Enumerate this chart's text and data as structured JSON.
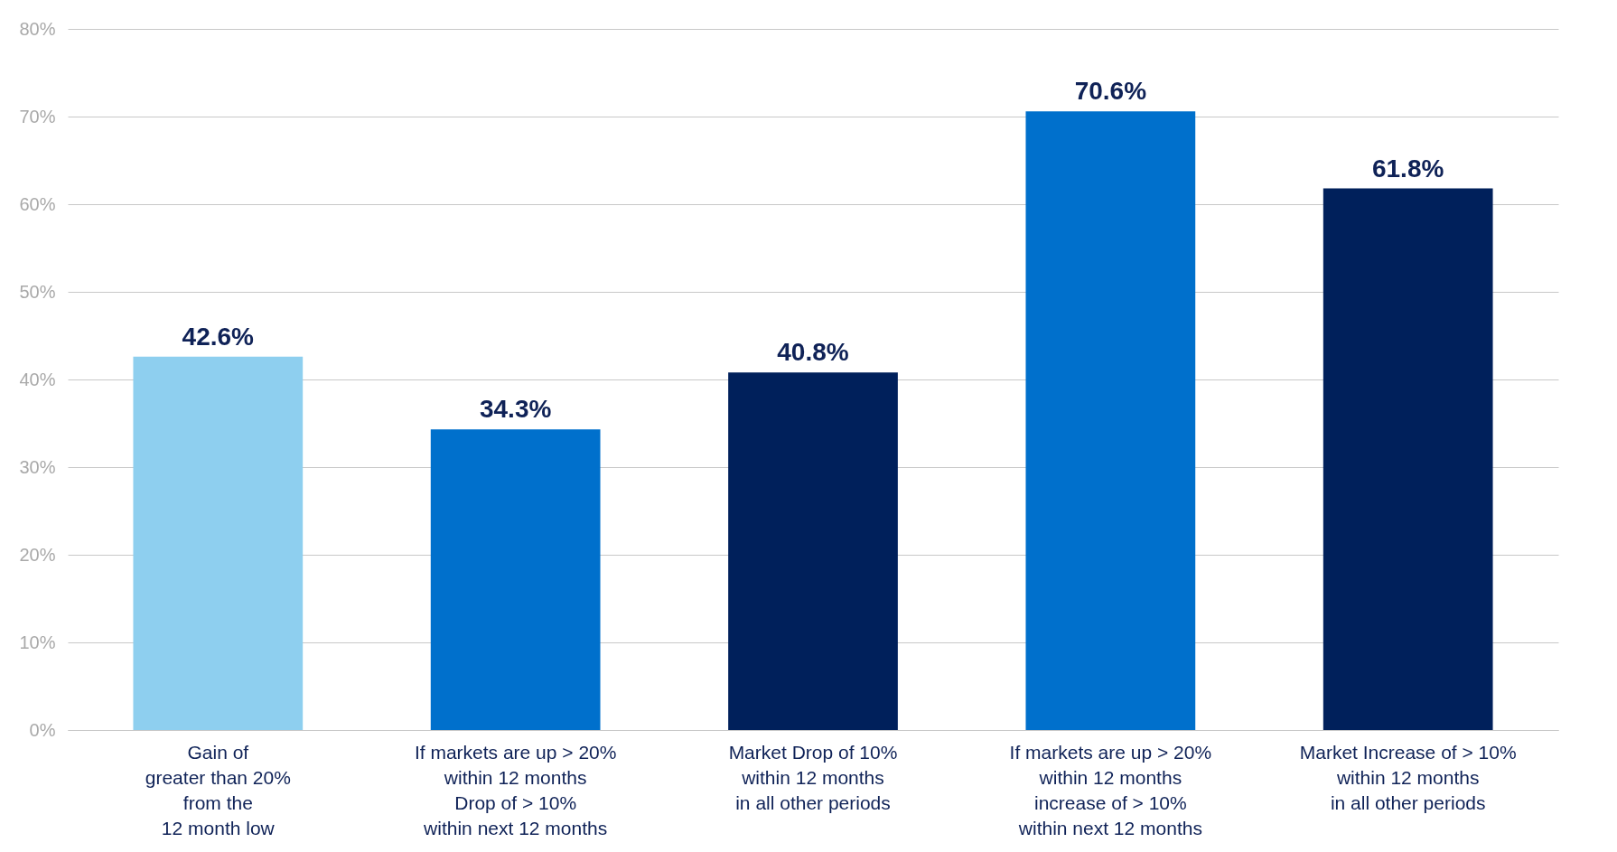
{
  "chart_data": {
    "type": "bar",
    "categories": [
      "Gain of\ngreater than 20%\nfrom the\n12 month low",
      "If markets are up > 20%\nwithin 12 months\nDrop of > 10%\nwithin next 12 months",
      "Market Drop of 10%\nwithin 12 months\nin all other periods",
      "If markets are up > 20%\nwithin 12 months\nincrease of > 10%\nwithin next 12 months",
      "Market Increase of > 10%\nwithin 12 months\nin all other periods"
    ],
    "values": [
      42.6,
      34.3,
      40.8,
      70.6,
      61.8
    ],
    "colors": [
      "#8ecfef",
      "#0070cc",
      "#00205b",
      "#0070cc",
      "#00205b"
    ],
    "value_labels": [
      "42.6%",
      "34.3%",
      "40.8%",
      "70.6%",
      "61.8%"
    ],
    "ylim": [
      0,
      80
    ],
    "yticks": [
      {
        "value": 0,
        "label": "0%"
      },
      {
        "value": 10,
        "label": "10%"
      },
      {
        "value": 20,
        "label": "20%"
      },
      {
        "value": 30,
        "label": "30%"
      },
      {
        "value": 40,
        "label": "40%"
      },
      {
        "value": 50,
        "label": "50%"
      },
      {
        "value": 60,
        "label": "60%"
      },
      {
        "value": 70,
        "label": "70%"
      },
      {
        "value": 80,
        "label": "80%"
      }
    ],
    "grid": "y"
  }
}
